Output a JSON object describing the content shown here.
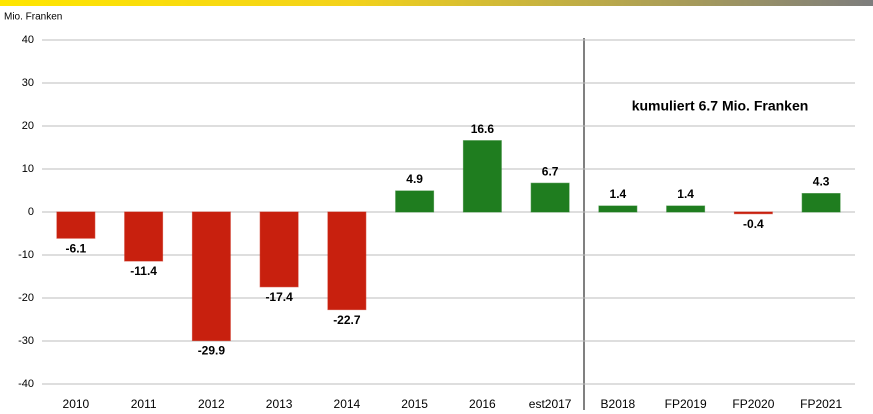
{
  "chart_data": {
    "type": "bar",
    "y_label": "Mio. Franken",
    "annotation": "kumuliert 6.7 Mio. Franken",
    "categories": [
      "2010",
      "2011",
      "2012",
      "2013",
      "2014",
      "2015",
      "2016",
      "est2017",
      "B2018",
      "FP2019",
      "FP2020",
      "FP2021"
    ],
    "values": [
      -6.1,
      -11.4,
      -29.9,
      -17.4,
      -22.7,
      4.9,
      16.6,
      6.7,
      1.4,
      1.4,
      -0.4,
      4.3
    ],
    "positive_color": "#1f7d1f",
    "negative_color": "#c8200e",
    "ylim": [
      -40,
      40
    ],
    "yticks": [
      -40,
      -30,
      -20,
      -10,
      0,
      10,
      20,
      30,
      40
    ],
    "grid": true
  }
}
